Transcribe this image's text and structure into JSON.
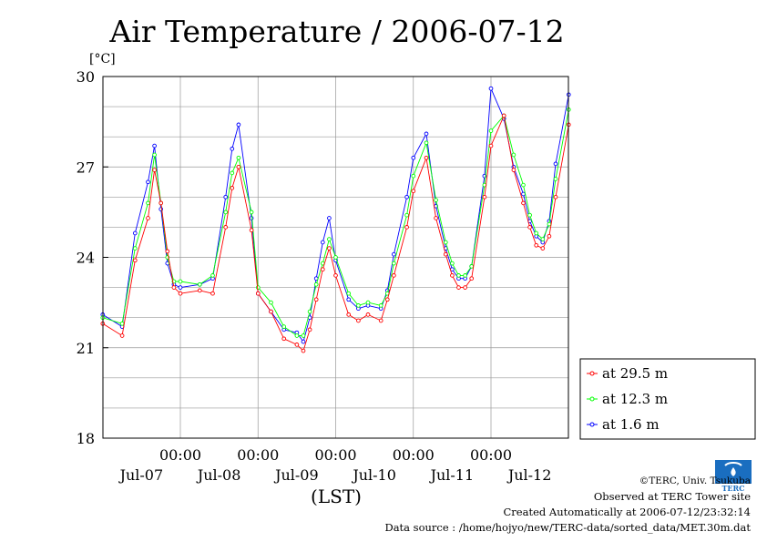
{
  "chart_data": {
    "type": "line",
    "title": "Air Temperature / 2006-07-12",
    "ylabel": "[°C]",
    "xlabel": "(LST)",
    "ylim": [
      18,
      30
    ],
    "yticks": [
      "18",
      "21",
      "24",
      "27",
      "30"
    ],
    "x_time_label": "00:00",
    "x_date_labels": [
      "Jul-07",
      "Jul-08",
      "Jul-09",
      "Jul-10",
      "Jul-11",
      "Jul-12"
    ],
    "grid": true,
    "legend_position": "right-bottom",
    "x_hours": [
      0,
      6,
      10,
      14,
      16,
      18,
      20,
      22,
      24,
      30,
      34,
      38,
      40,
      42,
      46,
      48,
      52,
      56,
      60,
      62,
      64,
      66,
      68,
      70,
      72,
      76,
      79,
      82,
      86,
      88,
      90,
      94,
      96,
      100,
      103,
      106,
      108,
      110,
      112,
      114,
      118,
      120,
      124,
      127,
      130,
      132,
      134,
      136,
      138,
      140,
      144
    ],
    "series": [
      {
        "name": "at 29.5 m",
        "color": "#ff0000",
        "values": [
          21.8,
          21.4,
          23.9,
          25.3,
          26.9,
          25.8,
          24.2,
          23.0,
          22.8,
          22.9,
          22.8,
          25.0,
          26.3,
          27.0,
          24.9,
          22.8,
          22.2,
          21.3,
          21.1,
          20.9,
          21.6,
          22.6,
          23.6,
          24.3,
          23.4,
          22.1,
          21.9,
          22.1,
          21.9,
          22.6,
          23.4,
          25.0,
          26.2,
          27.3,
          25.3,
          24.1,
          23.4,
          23.0,
          23.0,
          23.3,
          26.0,
          27.7,
          28.7,
          26.9,
          25.8,
          25.0,
          24.4,
          24.3,
          24.7,
          26.0,
          28.4
        ]
      },
      {
        "name": "at 12.3 m",
        "color": "#00ff00",
        "values": [
          22.0,
          21.8,
          24.3,
          25.8,
          27.4,
          25.8,
          24.0,
          23.2,
          23.2,
          23.1,
          23.4,
          25.5,
          26.8,
          27.3,
          25.5,
          23.0,
          22.5,
          21.7,
          21.4,
          21.4,
          22.2,
          23.1,
          23.8,
          24.6,
          24.0,
          22.8,
          22.4,
          22.5,
          22.4,
          22.8,
          23.8,
          25.4,
          26.7,
          27.8,
          25.9,
          24.5,
          23.8,
          23.4,
          23.4,
          23.7,
          26.4,
          28.2,
          28.7,
          27.4,
          26.4,
          25.4,
          24.8,
          24.6,
          25.1,
          26.6,
          28.9
        ]
      },
      {
        "name": "at 1.6 m",
        "color": "#0000ff",
        "values": [
          22.1,
          21.7,
          24.8,
          26.5,
          27.7,
          25.6,
          23.8,
          23.1,
          23.0,
          23.1,
          23.3,
          26.0,
          27.6,
          28.4,
          25.3,
          22.8,
          22.2,
          21.6,
          21.5,
          21.2,
          22.0,
          23.3,
          24.5,
          25.3,
          23.9,
          22.6,
          22.3,
          22.4,
          22.3,
          22.9,
          24.1,
          26.0,
          27.3,
          28.1,
          25.7,
          24.3,
          23.6,
          23.3,
          23.3,
          23.7,
          26.7,
          29.6,
          28.6,
          27.0,
          26.1,
          25.2,
          24.7,
          24.5,
          25.2,
          27.1,
          29.4
        ]
      }
    ]
  },
  "footer": {
    "copyright": "©TERC, Univ. Tsukuba",
    "site": "Observed at TERC Tower site",
    "created": "Created Automatically at 2006-07-12/23:32:14",
    "source": "Data source : /home/hojyo/new/TERC-data/sorted_data/MET.30m.dat"
  },
  "logo": {
    "text": "TERC",
    "color": "#1a6ec0"
  }
}
